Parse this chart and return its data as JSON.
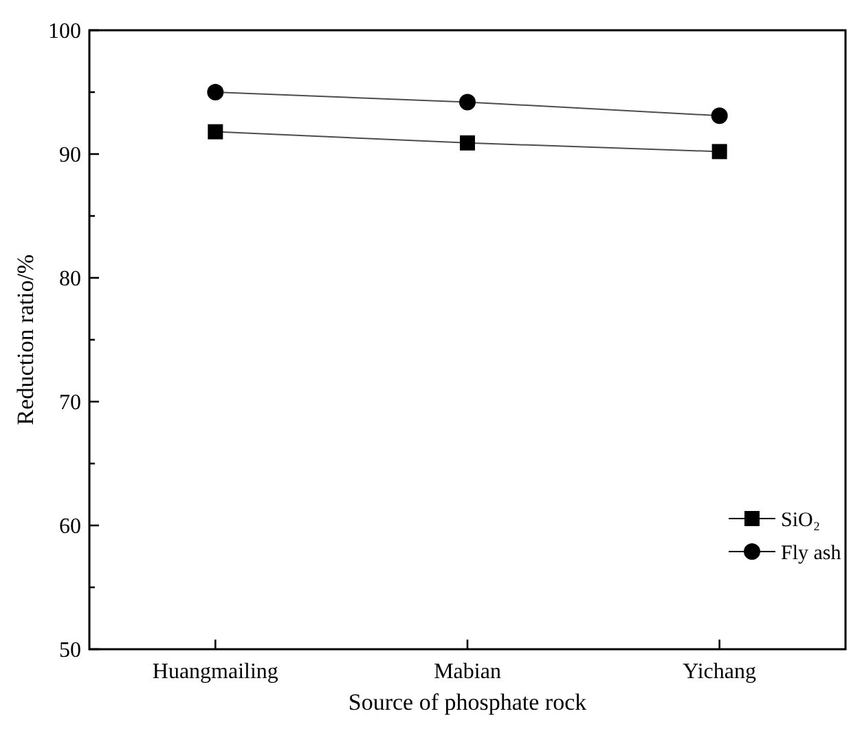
{
  "chart_data": {
    "type": "line",
    "xlabel": "Source of phosphate rock",
    "ylabel": "Reduction ratio/%",
    "categories": [
      "Huangmailing",
      "Mabian",
      "Yichang"
    ],
    "series": [
      {
        "name": "SiO₂",
        "color": "#000000",
        "marker": "square",
        "values": [
          91.8,
          90.9,
          90.2
        ]
      },
      {
        "name": "Fly ash",
        "color": "#000000",
        "marker": "circle",
        "values": [
          95.0,
          94.2,
          93.1
        ]
      }
    ],
    "ylim": [
      50,
      100
    ],
    "yticks": [
      50,
      {
        "value": 55,
        "label": null
      },
      60,
      {
        "value": 65,
        "label": null
      },
      70,
      {
        "value": 75,
        "label": null
      },
      80,
      {
        "value": 85,
        "label": null
      },
      90,
      {
        "value": 95,
        "label": null
      },
      100
    ],
    "grid": false,
    "legend": "bottom right",
    "line_style": "solid"
  }
}
